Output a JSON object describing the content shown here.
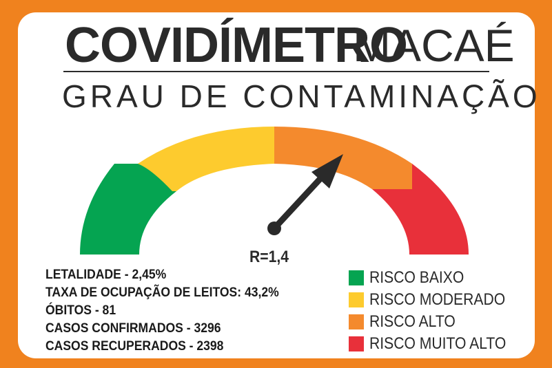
{
  "header": {
    "title_bold": "COVIDÍMETRO",
    "title_light": "MACAÉ",
    "subtitle": "GRAU DE CONTAMINAÇÃO"
  },
  "gauge": {
    "r_label": "R=1,4",
    "colors": {
      "baixo": "#05a451",
      "moderado": "#fdcb2e",
      "alto": "#f48a2d",
      "muito_alto": "#e8303a"
    }
  },
  "stats": [
    "LETALIDADE - 2,45%",
    "TAXA DE OCUPAÇÃO DE LEITOS: 43,2%",
    "ÓBITOS - 81",
    "CASOS CONFIRMADOS - 3296",
    "CASOS RECUPERADOS - 2398"
  ],
  "legend": [
    {
      "label": "RISCO BAIXO",
      "color": "#05a451"
    },
    {
      "label": "RISCO MODERADO",
      "color": "#fdcb2e"
    },
    {
      "label": "RISCO ALTO",
      "color": "#f48a2d"
    },
    {
      "label": "RISCO MUITO ALTO",
      "color": "#e8303a"
    }
  ]
}
